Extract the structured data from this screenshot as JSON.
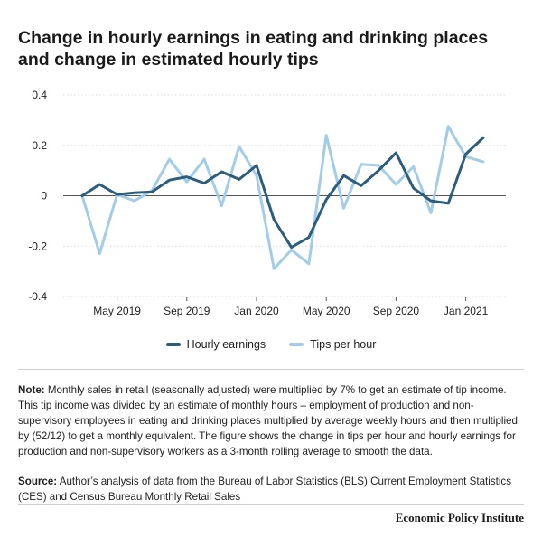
{
  "title": "Change in hourly earnings in eating and drinking places and change in estimated hourly tips",
  "chart_data": {
    "type": "line",
    "x": [
      "2019-03",
      "2019-04",
      "2019-05",
      "2019-06",
      "2019-07",
      "2019-08",
      "2019-09",
      "2019-10",
      "2019-11",
      "2019-12",
      "2020-01",
      "2020-02",
      "2020-03",
      "2020-04",
      "2020-05",
      "2020-06",
      "2020-07",
      "2020-08",
      "2020-09",
      "2020-10",
      "2020-11",
      "2020-12",
      "2021-01",
      "2021-02"
    ],
    "xticks": [
      {
        "x": "2019-05",
        "label": "May 2019"
      },
      {
        "x": "2019-09",
        "label": "Sep 2019"
      },
      {
        "x": "2020-01",
        "label": "Jan 2020"
      },
      {
        "x": "2020-05",
        "label": "May 2020"
      },
      {
        "x": "2020-09",
        "label": "Sep 2020"
      },
      {
        "x": "2021-01",
        "label": "Jan 2021"
      }
    ],
    "ylim": [
      -0.4,
      0.4
    ],
    "yticks": [
      "0.4",
      "0.2",
      "0",
      "-0.2",
      "-0.4"
    ],
    "ytick_values": [
      0.4,
      0.2,
      0,
      -0.2,
      -0.4
    ],
    "grid": "horizontal",
    "legend_position": "bottom",
    "series": [
      {
        "name": "Hourly earnings",
        "color": "#2c5d7c",
        "values": [
          0.0,
          0.045,
          0.005,
          0.012,
          0.015,
          0.062,
          0.075,
          0.05,
          0.095,
          0.065,
          0.12,
          -0.095,
          -0.205,
          -0.165,
          -0.015,
          0.08,
          0.04,
          0.1,
          0.17,
          0.03,
          -0.02,
          -0.03,
          0.165,
          0.23
        ]
      },
      {
        "name": "Tips per hour",
        "color": "#a3cce9",
        "values": [
          0.0,
          -0.23,
          0.005,
          -0.02,
          0.02,
          0.145,
          0.055,
          0.145,
          -0.04,
          0.195,
          0.08,
          -0.29,
          -0.215,
          -0.27,
          0.24,
          -0.05,
          0.125,
          0.12,
          0.045,
          0.115,
          -0.068,
          0.275,
          0.155,
          0.135
        ]
      }
    ]
  },
  "legend": {
    "items": [
      "Hourly earnings",
      "Tips per hour"
    ]
  },
  "note": {
    "label": "Note:",
    "text": " Monthly sales in retail (seasonally adjusted) were multiplied by 7% to get an estimate of tip income. This tip income was divided by an estimate of monthly hours – employment of production and non-supervisory employees in eating and drinking places multiplied by average weekly hours and then multiplied by (52/12) to get a monthly equivalent. The figure shows the change in tips per hour and hourly earnings for production and non-supervisory workers as a 3-month rolling average to smooth the data."
  },
  "source": {
    "label": "Source:",
    "text": " Author’s analysis of data from the Bureau of Labor Statistics (BLS) Current Employment Statistics (CES) and Census Bureau Monthly Retail Sales"
  },
  "brand": "Economic Policy Institute",
  "colors": {
    "earnings": "#2c5d7c",
    "tips": "#a3cce9",
    "grid": "#d9d9d9",
    "zero": "#555555"
  }
}
